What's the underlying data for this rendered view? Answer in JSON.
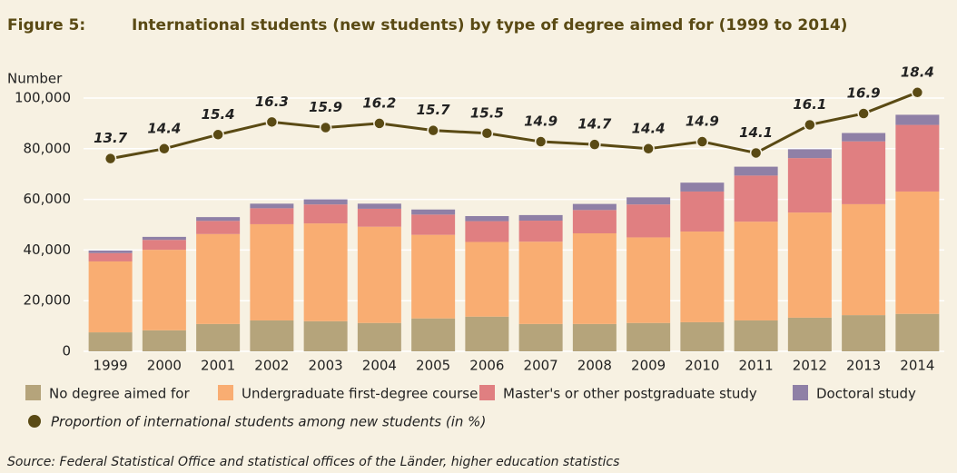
{
  "chart_data": {
    "type": "bar",
    "figure_label": "Figure 5:",
    "title": "International students (new students) by type of degree aimed for (1999 to 2014)",
    "y_label": "Number",
    "source": "Source: Federal Statistical Office and statistical offices of the Länder, higher education statistics",
    "stacked": true,
    "grid": true,
    "categories": [
      "1999",
      "2000",
      "2001",
      "2002",
      "2003",
      "2004",
      "2005",
      "2006",
      "2007",
      "2008",
      "2009",
      "2010",
      "2011",
      "2012",
      "2013",
      "2014"
    ],
    "series": [
      {
        "name": "No degree aimed for",
        "color": "#b5a47b",
        "values": [
          7500,
          8300,
          10800,
          12200,
          11900,
          11200,
          13000,
          13700,
          10800,
          10800,
          11200,
          11500,
          12200,
          13300,
          14300,
          14800
        ]
      },
      {
        "name": "Undergraduate first-degree course",
        "color": "#f9ad72",
        "values": [
          28000,
          31800,
          35500,
          38000,
          38600,
          38000,
          33000,
          29500,
          32500,
          35800,
          33800,
          35800,
          39000,
          41500,
          43800,
          48300
        ]
      },
      {
        "name": "Master's or other postgraduate study",
        "color": "#e07f81",
        "values": [
          3300,
          3900,
          5200,
          6300,
          7500,
          7100,
          8000,
          8200,
          8300,
          9200,
          13000,
          15800,
          18200,
          21500,
          24800,
          26300
        ]
      },
      {
        "name": "Doctoral study",
        "color": "#8f80a6",
        "values": [
          1000,
          1200,
          1500,
          1800,
          2000,
          2000,
          2000,
          2000,
          2200,
          2400,
          2800,
          3500,
          3500,
          3500,
          3300,
          4000
        ]
      },
      {
        "name": "Proportion of international students among new students (in %)",
        "type": "line",
        "axis": "y2",
        "color": "#5a4a14",
        "values": [
          13.7,
          14.4,
          15.4,
          16.3,
          15.9,
          16.2,
          15.7,
          15.5,
          14.9,
          14.7,
          14.4,
          14.9,
          14.1,
          16.1,
          16.9,
          18.4
        ]
      }
    ],
    "ylim": [
      0,
      100000
    ],
    "yticks": [
      0,
      {
        "value": 20000,
        "label": "20,000"
      },
      {
        "value": 40000,
        "label": "40,000"
      },
      {
        "value": 60000,
        "label": "60,000"
      },
      {
        "value": 80000,
        "label": "80,000"
      },
      {
        "value": 100000,
        "label": "100,000"
      }
    ],
    "y2lim": [
      0,
      18
    ]
  }
}
